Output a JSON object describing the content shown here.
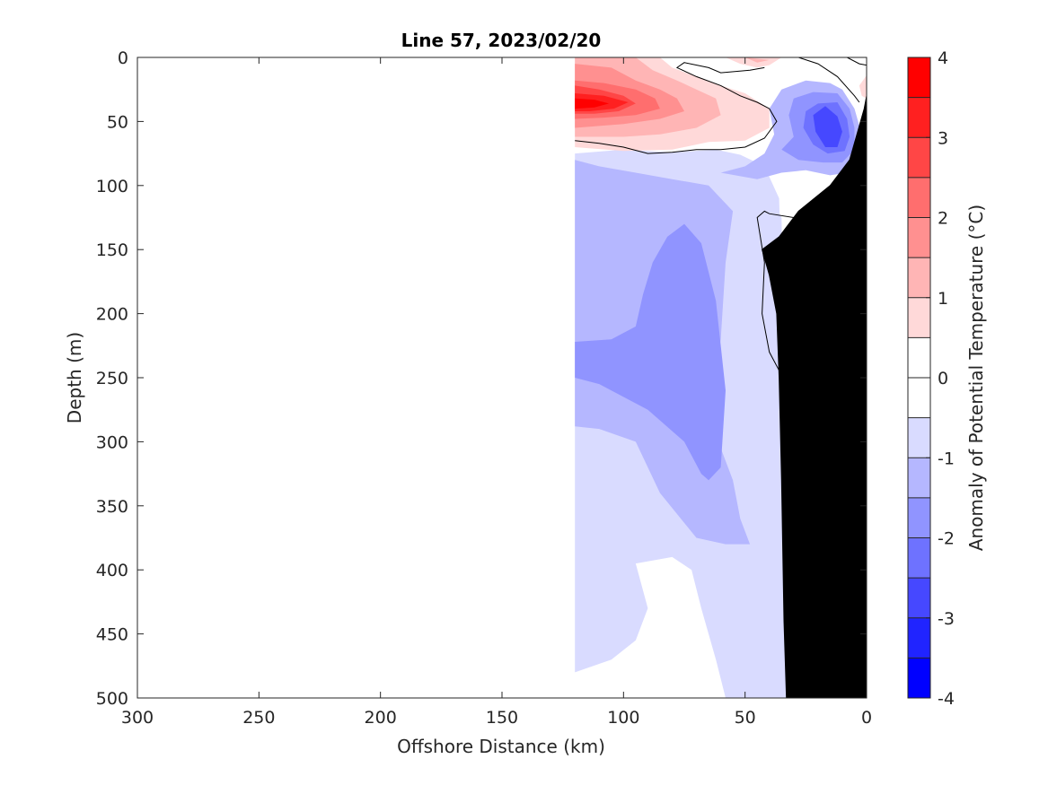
{
  "chart_data": {
    "type": "contour",
    "title": "Line 57, 2023/02/20",
    "xlabel": "Offshore Distance (km)",
    "ylabel": "Depth (m)",
    "colorbar_label": "Anomaly of Potential Temperature (°C)",
    "xlim": [
      300,
      0
    ],
    "ylim": [
      500,
      0
    ],
    "x_ticks": [
      300,
      250,
      200,
      150,
      100,
      50,
      0
    ],
    "y_ticks": [
      0,
      50,
      100,
      150,
      200,
      250,
      300,
      350,
      400,
      450,
      500
    ],
    "x_tick_labels": [
      "300",
      "250",
      "200",
      "150",
      "100",
      "50",
      "0"
    ],
    "y_tick_labels": [
      "0",
      "50",
      "100",
      "150",
      "200",
      "250",
      "300",
      "350",
      "400",
      "450",
      "500"
    ],
    "colorbar_ticks": [
      4,
      3,
      2,
      1,
      0,
      -1,
      -2,
      -3,
      -4
    ],
    "colorbar_tick_labels": [
      "4",
      "3",
      "2",
      "1",
      "0",
      "-1",
      "-2",
      "-3",
      "-4"
    ],
    "colorbar_range": [
      -4,
      4
    ],
    "colorbar_levels": [
      {
        "from": 3.5,
        "to": 4.0,
        "color": "#ff0000"
      },
      {
        "from": 3.0,
        "to": 3.5,
        "color": "#ff2020"
      },
      {
        "from": 2.5,
        "to": 3.0,
        "color": "#ff4646"
      },
      {
        "from": 2.0,
        "to": 2.5,
        "color": "#ff6e6e"
      },
      {
        "from": 1.5,
        "to": 2.0,
        "color": "#ff9090"
      },
      {
        "from": 1.0,
        "to": 1.5,
        "color": "#ffb5b5"
      },
      {
        "from": 0.5,
        "to": 1.0,
        "color": "#ffd9d9"
      },
      {
        "from": 0.0,
        "to": 0.5,
        "color": "#ffffff"
      },
      {
        "from": -0.5,
        "to": 0.0,
        "color": "#ffffff"
      },
      {
        "from": -1.0,
        "to": -0.5,
        "color": "#d9dbff"
      },
      {
        "from": -1.5,
        "to": -1.0,
        "color": "#b5b7ff"
      },
      {
        "from": -2.0,
        "to": -1.5,
        "color": "#9094ff"
      },
      {
        "from": -2.5,
        "to": -2.0,
        "color": "#6e72ff"
      },
      {
        "from": -3.0,
        "to": -2.5,
        "color": "#4648ff"
      },
      {
        "from": -3.5,
        "to": -3.0,
        "color": "#2024ff"
      },
      {
        "from": -4.0,
        "to": -3.5,
        "color": "#0000ff"
      }
    ],
    "data_extent_km": [
      0,
      120
    ],
    "regions": [
      {
        "name": "cold-anomaly-deep",
        "level": -0.75,
        "points": [
          [
            120,
            80
          ],
          [
            95,
            83
          ],
          [
            80,
            88
          ],
          [
            60,
            85
          ],
          [
            50,
            100
          ],
          [
            40,
            108
          ],
          [
            35,
            125
          ],
          [
            34,
            250
          ],
          [
            32,
            500
          ],
          [
            43,
            500
          ],
          [
            52,
            445
          ],
          [
            58,
            370
          ],
          [
            62,
            310
          ],
          [
            65,
            280
          ],
          [
            72,
            230
          ],
          [
            78,
            160
          ],
          [
            75,
            140
          ],
          [
            70,
            120
          ],
          [
            60,
            110
          ],
          [
            70,
            105
          ],
          [
            95,
            100
          ],
          [
            120,
            102
          ]
        ]
      },
      {
        "name": "cold-anomaly-shallow-lens",
        "level": -0.75,
        "points": [
          [
            120,
            110
          ],
          [
            120,
            480
          ],
          [
            105,
            470
          ],
          [
            95,
            455
          ],
          [
            90,
            430
          ],
          [
            95,
            395
          ],
          [
            80,
            390
          ],
          [
            72,
            400
          ],
          [
            68,
            430
          ],
          [
            62,
            470
          ],
          [
            58,
            500
          ],
          [
            32,
            500
          ],
          [
            34,
            250
          ],
          [
            36,
            110
          ],
          [
            42,
            85
          ],
          [
            52,
            76
          ],
          [
            62,
            72
          ],
          [
            80,
            74
          ],
          [
            100,
            72
          ],
          [
            120,
            75
          ]
        ]
      },
      {
        "name": "cold-anomaly-mid",
        "level": -1.25,
        "points": [
          [
            120,
            80
          ],
          [
            110,
            85
          ],
          [
            95,
            90
          ],
          [
            80,
            95
          ],
          [
            65,
            100
          ],
          [
            55,
            120
          ],
          [
            58,
            160
          ],
          [
            60,
            220
          ],
          [
            65,
            280
          ],
          [
            55,
            330
          ],
          [
            52,
            360
          ],
          [
            48,
            380
          ],
          [
            58,
            380
          ],
          [
            70,
            375
          ],
          [
            85,
            340
          ],
          [
            95,
            300
          ],
          [
            110,
            290
          ],
          [
            120,
            288
          ]
        ]
      },
      {
        "name": "cold-anomaly-core",
        "level": -1.75,
        "points": [
          [
            120,
            222
          ],
          [
            105,
            220
          ],
          [
            95,
            210
          ],
          [
            92,
            185
          ],
          [
            88,
            160
          ],
          [
            82,
            140
          ],
          [
            75,
            130
          ],
          [
            68,
            145
          ],
          [
            62,
            190
          ],
          [
            58,
            260
          ],
          [
            60,
            320
          ],
          [
            65,
            330
          ],
          [
            68,
            325
          ],
          [
            75,
            300
          ],
          [
            90,
            275
          ],
          [
            110,
            255
          ],
          [
            120,
            250
          ]
        ]
      },
      {
        "name": "cold-anomaly-surface-outer",
        "level": -1.25,
        "points": [
          [
            15,
            20
          ],
          [
            25,
            18
          ],
          [
            35,
            25
          ],
          [
            40,
            40
          ],
          [
            38,
            60
          ],
          [
            42,
            75
          ],
          [
            50,
            85
          ],
          [
            60,
            90
          ],
          [
            45,
            95
          ],
          [
            35,
            90
          ],
          [
            25,
            88
          ],
          [
            15,
            92
          ],
          [
            8,
            90
          ],
          [
            3,
            80
          ],
          [
            2,
            60
          ],
          [
            5,
            40
          ],
          [
            10,
            25
          ]
        ]
      },
      {
        "name": "cold-anomaly-surface-mid",
        "level": -1.75,
        "points": [
          [
            12,
            28
          ],
          [
            22,
            27
          ],
          [
            30,
            32
          ],
          [
            32,
            45
          ],
          [
            30,
            62
          ],
          [
            35,
            72
          ],
          [
            28,
            80
          ],
          [
            18,
            82
          ],
          [
            10,
            82
          ],
          [
            5,
            72
          ],
          [
            5,
            55
          ],
          [
            7,
            40
          ]
        ]
      },
      {
        "name": "cold-anomaly-surface-core",
        "level": -2.25,
        "points": [
          [
            12,
            35
          ],
          [
            20,
            36
          ],
          [
            25,
            42
          ],
          [
            26,
            55
          ],
          [
            22,
            68
          ],
          [
            16,
            75
          ],
          [
            9,
            73
          ],
          [
            7,
            62
          ],
          [
            8,
            48
          ]
        ]
      },
      {
        "name": "cold-anomaly-surface-inner",
        "level": -2.75,
        "points": [
          [
            17,
            38
          ],
          [
            22,
            45
          ],
          [
            21,
            58
          ],
          [
            17,
            70
          ],
          [
            12,
            70
          ],
          [
            10,
            58
          ],
          [
            12,
            46
          ]
        ]
      },
      {
        "name": "warm-anomaly-outer",
        "level": 0.75,
        "points": [
          [
            120,
            0
          ],
          [
            85,
            0
          ],
          [
            80,
            8
          ],
          [
            70,
            15
          ],
          [
            60,
            22
          ],
          [
            50,
            28
          ],
          [
            40,
            40
          ],
          [
            40,
            55
          ],
          [
            50,
            65
          ],
          [
            65,
            66
          ],
          [
            80,
            72
          ],
          [
            100,
            73
          ],
          [
            120,
            70
          ]
        ]
      },
      {
        "name": "warm-anomaly-mid",
        "level": 1.25,
        "points": [
          [
            120,
            0
          ],
          [
            95,
            0
          ],
          [
            88,
            10
          ],
          [
            78,
            18
          ],
          [
            70,
            25
          ],
          [
            62,
            32
          ],
          [
            60,
            45
          ],
          [
            70,
            55
          ],
          [
            85,
            60
          ],
          [
            100,
            62
          ],
          [
            120,
            62
          ]
        ]
      },
      {
        "name": "warm-anomaly-inner",
        "level": 1.75,
        "points": [
          [
            120,
            5
          ],
          [
            105,
            8
          ],
          [
            95,
            18
          ],
          [
            85,
            25
          ],
          [
            78,
            32
          ],
          [
            75,
            42
          ],
          [
            85,
            48
          ],
          [
            100,
            52
          ],
          [
            120,
            55
          ]
        ]
      },
      {
        "name": "warm-anomaly-strong",
        "level": 2.25,
        "points": [
          [
            120,
            18
          ],
          [
            108,
            20
          ],
          [
            95,
            25
          ],
          [
            87,
            32
          ],
          [
            85,
            40
          ],
          [
            95,
            45
          ],
          [
            108,
            47
          ],
          [
            120,
            48
          ]
        ]
      },
      {
        "name": "warm-anomaly-stronger",
        "level": 2.75,
        "points": [
          [
            120,
            22
          ],
          [
            110,
            25
          ],
          [
            100,
            30
          ],
          [
            95,
            36
          ],
          [
            102,
            42
          ],
          [
            112,
            44
          ],
          [
            120,
            44
          ]
        ]
      },
      {
        "name": "warm-anomaly-core",
        "level": 3.25,
        "points": [
          [
            120,
            28
          ],
          [
            108,
            30
          ],
          [
            98,
            35
          ],
          [
            104,
            40
          ],
          [
            114,
            42
          ],
          [
            120,
            42
          ]
        ]
      },
      {
        "name": "warm-anomaly-peak",
        "level": 3.75,
        "points": [
          [
            120,
            32
          ],
          [
            112,
            33
          ],
          [
            106,
            36
          ],
          [
            112,
            39
          ],
          [
            120,
            40
          ]
        ]
      },
      {
        "name": "warm-patch-nearshore-top",
        "level": 0.75,
        "points": [
          [
            58,
            0
          ],
          [
            52,
            5
          ],
          [
            45,
            8
          ],
          [
            40,
            6
          ],
          [
            35,
            0
          ]
        ]
      },
      {
        "name": "warm-patch-nearshore-top-mid",
        "level": 1.25,
        "points": [
          [
            50,
            0
          ],
          [
            45,
            4
          ],
          [
            40,
            2
          ]
        ]
      },
      {
        "name": "warm-patch-coast",
        "level": 0.75,
        "points": [
          [
            0,
            14
          ],
          [
            3,
            22
          ],
          [
            2,
            30
          ],
          [
            0,
            32
          ]
        ]
      }
    ],
    "contours_zero": [
      {
        "name": "zero-contour-surface-warm",
        "points": [
          [
            120,
            65
          ],
          [
            110,
            67
          ],
          [
            100,
            70
          ],
          [
            90,
            75
          ],
          [
            80,
            74
          ],
          [
            70,
            72
          ],
          [
            60,
            72
          ],
          [
            50,
            70
          ],
          [
            42,
            63
          ],
          [
            37,
            50
          ],
          [
            40,
            40
          ],
          [
            45,
            35
          ],
          [
            52,
            30
          ],
          [
            60,
            22
          ],
          [
            70,
            15
          ],
          [
            78,
            8
          ],
          [
            75,
            4
          ],
          [
            65,
            8
          ],
          [
            60,
            12
          ],
          [
            48,
            10
          ],
          [
            42,
            8
          ]
        ]
      },
      {
        "name": "zero-contour-nearshore-top",
        "points": [
          [
            28,
            0
          ],
          [
            20,
            5
          ],
          [
            12,
            15
          ],
          [
            5,
            30
          ],
          [
            3,
            35
          ]
        ]
      },
      {
        "name": "zero-contour-corner",
        "points": [
          [
            8,
            0
          ],
          [
            3,
            5
          ],
          [
            0,
            6
          ]
        ]
      },
      {
        "name": "zero-contour-warm-lens",
        "points": [
          [
            30,
            255
          ],
          [
            35,
            248
          ],
          [
            40,
            230
          ],
          [
            43,
            200
          ],
          [
            42,
            160
          ],
          [
            45,
            125
          ],
          [
            42,
            120
          ],
          [
            40,
            122
          ],
          [
            20,
            128
          ],
          [
            12,
            132
          ],
          [
            10,
            135
          ]
        ]
      },
      {
        "name": "zero-contour-slope",
        "points": [
          [
            25,
            200
          ],
          [
            23,
            180
          ],
          [
            20,
            178
          ]
        ]
      }
    ],
    "bathymetry": [
      [
        0,
        30
      ],
      [
        0,
        500
      ],
      [
        33,
        500
      ],
      [
        34,
        440
      ],
      [
        35,
        330
      ],
      [
        36,
        250
      ],
      [
        37,
        200
      ],
      [
        40,
        170
      ],
      [
        43,
        150
      ],
      [
        36,
        140
      ],
      [
        28,
        120
      ],
      [
        15,
        100
      ],
      [
        7,
        80
      ],
      [
        4,
        60
      ],
      [
        1,
        40
      ],
      [
        0,
        30
      ]
    ],
    "bathymetry_fill": "#000000"
  }
}
